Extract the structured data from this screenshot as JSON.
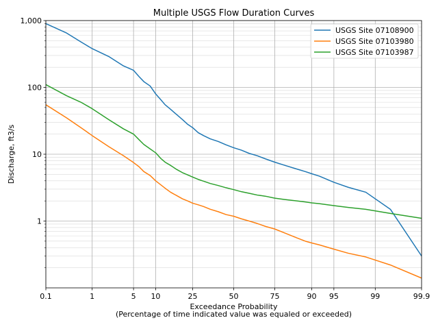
{
  "chart_data": {
    "type": "line",
    "title": "Multiple USGS Flow Duration Curves",
    "xlabel": "Exceedance Probability",
    "xlabel2": "(Percentage of time indicated value was equaled or exceeded)",
    "ylabel": "Discharge, ft3/s",
    "xscale": "normal-probability",
    "yscale": "log",
    "xlim": [
      0.1,
      99.9
    ],
    "ylim": [
      0.1,
      1000
    ],
    "x_ticks": [
      0.1,
      1,
      5,
      10,
      25,
      50,
      75,
      90,
      95,
      99,
      99.9
    ],
    "x_tick_labels": [
      "0.1",
      "1",
      "5",
      "10",
      "25",
      "50",
      "75",
      "90",
      "95",
      "99",
      "99.9"
    ],
    "y_major_ticks": [
      1,
      10,
      100,
      1000
    ],
    "y_tick_labels": [
      "1",
      "10",
      "100",
      "1,000"
    ],
    "grid": true,
    "legend_position": "top-right",
    "series": [
      {
        "name": "USGS Site 07108900",
        "color": "#1f77b4",
        "points": [
          [
            0.1,
            900
          ],
          [
            0.3,
            650
          ],
          [
            0.6,
            480
          ],
          [
            1,
            380
          ],
          [
            2,
            290
          ],
          [
            3.5,
            210
          ],
          [
            5,
            180
          ],
          [
            6,
            145
          ],
          [
            7,
            122
          ],
          [
            8.5,
            105
          ],
          [
            10,
            80
          ],
          [
            11.5,
            66
          ],
          [
            13,
            55
          ],
          [
            15,
            47
          ],
          [
            17.5,
            39
          ],
          [
            20,
            33
          ],
          [
            22.5,
            28
          ],
          [
            25,
            25
          ],
          [
            28,
            21
          ],
          [
            31,
            19
          ],
          [
            35,
            17
          ],
          [
            40,
            15.5
          ],
          [
            45,
            13.8
          ],
          [
            50,
            12.5
          ],
          [
            55,
            11.5
          ],
          [
            60,
            10.3
          ],
          [
            65,
            9.5
          ],
          [
            70,
            8.5
          ],
          [
            75,
            7.6
          ],
          [
            80,
            6.8
          ],
          [
            85,
            6.0
          ],
          [
            88,
            5.5
          ],
          [
            90,
            5.1
          ],
          [
            92,
            4.7
          ],
          [
            95,
            3.8
          ],
          [
            97,
            3.2
          ],
          [
            98.5,
            2.7
          ],
          [
            99.5,
            1.5
          ],
          [
            99.9,
            0.3
          ]
        ]
      },
      {
        "name": "USGS Site 07103980",
        "color": "#ff7f0e",
        "points": [
          [
            0.1,
            55
          ],
          [
            0.3,
            35
          ],
          [
            0.6,
            25
          ],
          [
            1,
            19
          ],
          [
            2,
            13
          ],
          [
            3.5,
            9.5
          ],
          [
            5,
            7.5
          ],
          [
            6,
            6.5
          ],
          [
            7,
            5.5
          ],
          [
            8.5,
            4.8
          ],
          [
            10,
            4.0
          ],
          [
            11.5,
            3.5
          ],
          [
            13,
            3.1
          ],
          [
            15,
            2.7
          ],
          [
            17.5,
            2.4
          ],
          [
            20,
            2.15
          ],
          [
            22.5,
            2.0
          ],
          [
            25,
            1.85
          ],
          [
            28,
            1.75
          ],
          [
            31,
            1.65
          ],
          [
            35,
            1.5
          ],
          [
            40,
            1.38
          ],
          [
            45,
            1.25
          ],
          [
            50,
            1.18
          ],
          [
            55,
            1.08
          ],
          [
            60,
            1.0
          ],
          [
            65,
            0.92
          ],
          [
            70,
            0.83
          ],
          [
            75,
            0.76
          ],
          [
            80,
            0.66
          ],
          [
            85,
            0.56
          ],
          [
            88,
            0.5
          ],
          [
            90,
            0.47
          ],
          [
            92,
            0.44
          ],
          [
            95,
            0.38
          ],
          [
            97,
            0.33
          ],
          [
            98.5,
            0.29
          ],
          [
            99.5,
            0.22
          ],
          [
            99.9,
            0.14
          ]
        ]
      },
      {
        "name": "USGS Site 07103987",
        "color": "#2ca02c",
        "points": [
          [
            0.1,
            110
          ],
          [
            0.3,
            75
          ],
          [
            0.6,
            60
          ],
          [
            1,
            48
          ],
          [
            2,
            33
          ],
          [
            3.5,
            24
          ],
          [
            5,
            20
          ],
          [
            6,
            16.5
          ],
          [
            7,
            14
          ],
          [
            8.5,
            12
          ],
          [
            10,
            10.5
          ],
          [
            11.5,
            8.7
          ],
          [
            13,
            7.6
          ],
          [
            15,
            6.8
          ],
          [
            17.5,
            5.9
          ],
          [
            20,
            5.3
          ],
          [
            22.5,
            4.9
          ],
          [
            25,
            4.55
          ],
          [
            28,
            4.2
          ],
          [
            31,
            3.95
          ],
          [
            35,
            3.65
          ],
          [
            40,
            3.4
          ],
          [
            45,
            3.15
          ],
          [
            50,
            2.95
          ],
          [
            55,
            2.75
          ],
          [
            60,
            2.6
          ],
          [
            65,
            2.45
          ],
          [
            70,
            2.35
          ],
          [
            75,
            2.2
          ],
          [
            80,
            2.1
          ],
          [
            85,
            2.0
          ],
          [
            88,
            1.93
          ],
          [
            90,
            1.87
          ],
          [
            92,
            1.82
          ],
          [
            95,
            1.7
          ],
          [
            97,
            1.6
          ],
          [
            98.5,
            1.5
          ],
          [
            99.5,
            1.3
          ],
          [
            99.9,
            1.1
          ]
        ]
      }
    ]
  }
}
